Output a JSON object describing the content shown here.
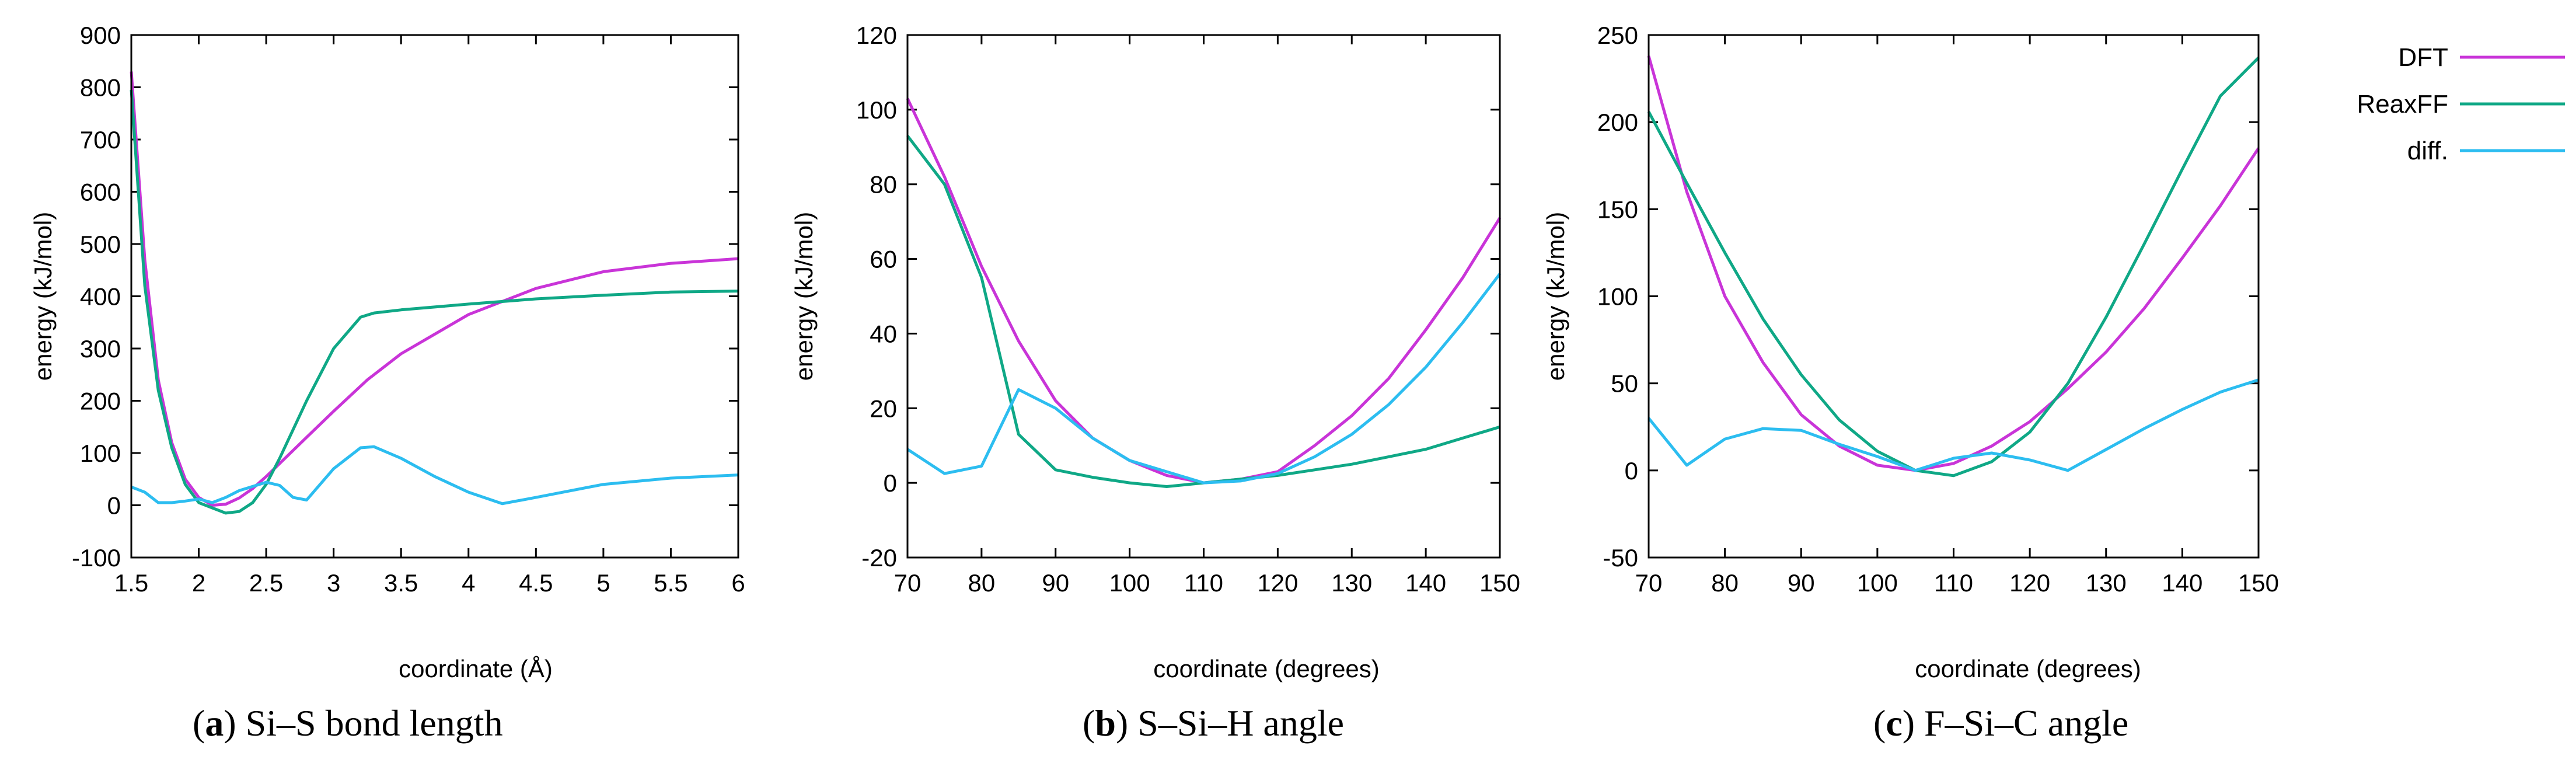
{
  "legend": [
    {
      "label": "DFT",
      "color": "#c934d8"
    },
    {
      "label": "ReaxFF",
      "color": "#0fa886"
    },
    {
      "label": "diff.",
      "color": "#2cbdf0"
    }
  ],
  "chart_data": [
    {
      "type": "line",
      "caption_prefix": "(",
      "caption_letter": "a",
      "caption_rest": ") Si–S bond length",
      "xlabel": "coordinate (Å)",
      "ylabel": "energy (kJ/mol)",
      "xlim": [
        1.5,
        6
      ],
      "ylim": [
        -100,
        900
      ],
      "xticks": [
        1.5,
        2,
        2.5,
        3,
        3.5,
        4,
        4.5,
        5,
        5.5,
        6
      ],
      "xtick_labels": [
        "1.5",
        "2",
        "2.5",
        "3",
        "3.5",
        "4",
        "4.5",
        "5",
        "5.5",
        "6"
      ],
      "yticks": [
        -100,
        0,
        100,
        200,
        300,
        400,
        500,
        600,
        700,
        800,
        900
      ],
      "ytick_labels": [
        "-100",
        "0",
        "100",
        "200",
        "300",
        "400",
        "500",
        "600",
        "700",
        "800",
        "900"
      ],
      "series": [
        {
          "name": "DFT",
          "color": "#c934d8",
          "points": [
            [
              1.5,
              830
            ],
            [
              1.6,
              470
            ],
            [
              1.7,
              240
            ],
            [
              1.8,
              120
            ],
            [
              1.9,
              50
            ],
            [
              2.0,
              15
            ],
            [
              2.1,
              0
            ],
            [
              2.2,
              2
            ],
            [
              2.3,
              14
            ],
            [
              2.4,
              32
            ],
            [
              2.5,
              55
            ],
            [
              2.6,
              80
            ],
            [
              2.8,
              130
            ],
            [
              3.0,
              180
            ],
            [
              3.25,
              240
            ],
            [
              3.5,
              290
            ],
            [
              4.0,
              365
            ],
            [
              4.5,
              415
            ],
            [
              5.0,
              447
            ],
            [
              5.5,
              463
            ],
            [
              6.0,
              472
            ]
          ]
        },
        {
          "name": "ReaxFF",
          "color": "#0fa886",
          "points": [
            [
              1.5,
              795
            ],
            [
              1.6,
              420
            ],
            [
              1.7,
              220
            ],
            [
              1.8,
              110
            ],
            [
              1.9,
              40
            ],
            [
              2.0,
              5
            ],
            [
              2.1,
              -5
            ],
            [
              2.2,
              -15
            ],
            [
              2.3,
              -12
            ],
            [
              2.4,
              5
            ],
            [
              2.5,
              40
            ],
            [
              2.6,
              90
            ],
            [
              2.8,
              200
            ],
            [
              3.0,
              300
            ],
            [
              3.2,
              360
            ],
            [
              3.3,
              368
            ],
            [
              3.5,
              374
            ],
            [
              4.0,
              385
            ],
            [
              4.5,
              395
            ],
            [
              5.0,
              402
            ],
            [
              5.5,
              408
            ],
            [
              6.0,
              410
            ]
          ]
        },
        {
          "name": "diff.",
          "color": "#2cbdf0",
          "points": [
            [
              1.5,
              35
            ],
            [
              1.6,
              25
            ],
            [
              1.7,
              5
            ],
            [
              1.8,
              5
            ],
            [
              1.9,
              8
            ],
            [
              2.0,
              12
            ],
            [
              2.1,
              5
            ],
            [
              2.2,
              15
            ],
            [
              2.3,
              28
            ],
            [
              2.4,
              36
            ],
            [
              2.5,
              44
            ],
            [
              2.6,
              38
            ],
            [
              2.7,
              15
            ],
            [
              2.8,
              10
            ],
            [
              3.0,
              70
            ],
            [
              3.2,
              110
            ],
            [
              3.3,
              112
            ],
            [
              3.5,
              90
            ],
            [
              3.75,
              55
            ],
            [
              4.0,
              25
            ],
            [
              4.25,
              3
            ],
            [
              4.5,
              15
            ],
            [
              5.0,
              40
            ],
            [
              5.5,
              52
            ],
            [
              6.0,
              58
            ]
          ]
        }
      ]
    },
    {
      "type": "line",
      "caption_prefix": "(",
      "caption_letter": "b",
      "caption_rest": ") S–Si–H angle",
      "xlabel": "coordinate (degrees)",
      "ylabel": "energy (kJ/mol)",
      "xlim": [
        70,
        150
      ],
      "ylim": [
        -20,
        120
      ],
      "xticks": [
        70,
        80,
        90,
        100,
        110,
        120,
        130,
        140,
        150
      ],
      "xtick_labels": [
        "70",
        "80",
        "90",
        "100",
        "110",
        "120",
        "130",
        "140",
        "150"
      ],
      "yticks": [
        -20,
        0,
        20,
        40,
        60,
        80,
        100,
        120
      ],
      "ytick_labels": [
        "-20",
        "0",
        "20",
        "40",
        "60",
        "80",
        "100",
        "120"
      ],
      "series": [
        {
          "name": "DFT",
          "color": "#c934d8",
          "points": [
            [
              70,
              103
            ],
            [
              75,
              82
            ],
            [
              80,
              58
            ],
            [
              85,
              38
            ],
            [
              90,
              22
            ],
            [
              95,
              12
            ],
            [
              100,
              6
            ],
            [
              105,
              2
            ],
            [
              110,
              0
            ],
            [
              115,
              1
            ],
            [
              120,
              3
            ],
            [
              125,
              10
            ],
            [
              130,
              18
            ],
            [
              135,
              28
            ],
            [
              140,
              41
            ],
            [
              145,
              55
            ],
            [
              150,
              71
            ]
          ]
        },
        {
          "name": "ReaxFF",
          "color": "#0fa886",
          "points": [
            [
              70,
              93
            ],
            [
              75,
              80
            ],
            [
              80,
              55
            ],
            [
              85,
              13
            ],
            [
              90,
              3.5
            ],
            [
              95,
              1.5
            ],
            [
              100,
              0
            ],
            [
              105,
              -1
            ],
            [
              110,
              0
            ],
            [
              115,
              1
            ],
            [
              120,
              2
            ],
            [
              125,
              3.5
            ],
            [
              130,
              5
            ],
            [
              135,
              7
            ],
            [
              140,
              9
            ],
            [
              145,
              12
            ],
            [
              150,
              15
            ]
          ]
        },
        {
          "name": "diff.",
          "color": "#2cbdf0",
          "points": [
            [
              70,
              9
            ],
            [
              75,
              2.5
            ],
            [
              80,
              4.5
            ],
            [
              85,
              25
            ],
            [
              90,
              20
            ],
            [
              95,
              12
            ],
            [
              100,
              6
            ],
            [
              105,
              3
            ],
            [
              110,
              0
            ],
            [
              115,
              0.5
            ],
            [
              120,
              2.5
            ],
            [
              125,
              7
            ],
            [
              130,
              13
            ],
            [
              135,
              21
            ],
            [
              140,
              31
            ],
            [
              145,
              43
            ],
            [
              150,
              56
            ]
          ]
        }
      ]
    },
    {
      "type": "line",
      "caption_prefix": "(",
      "caption_letter": "c",
      "caption_rest": ") F–Si–C angle",
      "xlabel": "coordinate (degrees)",
      "ylabel": "energy (kJ/mol)",
      "xlim": [
        70,
        150
      ],
      "ylim": [
        -50,
        250
      ],
      "xticks": [
        70,
        80,
        90,
        100,
        110,
        120,
        130,
        140,
        150
      ],
      "xtick_labels": [
        "70",
        "80",
        "90",
        "100",
        "110",
        "120",
        "130",
        "140",
        "150"
      ],
      "yticks": [
        -50,
        0,
        50,
        100,
        150,
        200,
        250
      ],
      "ytick_labels": [
        "-50",
        "0",
        "50",
        "100",
        "150",
        "200",
        "250"
      ],
      "series": [
        {
          "name": "DFT",
          "color": "#c934d8",
          "points": [
            [
              70,
              238
            ],
            [
              75,
              160
            ],
            [
              80,
              100
            ],
            [
              85,
              62
            ],
            [
              90,
              32
            ],
            [
              95,
              14
            ],
            [
              100,
              3
            ],
            [
              105,
              0
            ],
            [
              110,
              4
            ],
            [
              115,
              14
            ],
            [
              120,
              28
            ],
            [
              125,
              47
            ],
            [
              130,
              68
            ],
            [
              135,
              93
            ],
            [
              140,
              122
            ],
            [
              145,
              152
            ],
            [
              150,
              185
            ]
          ]
        },
        {
          "name": "ReaxFF",
          "color": "#0fa886",
          "points": [
            [
              70,
              206
            ],
            [
              75,
              165
            ],
            [
              80,
              125
            ],
            [
              85,
              87
            ],
            [
              90,
              55
            ],
            [
              95,
              29
            ],
            [
              100,
              11
            ],
            [
              105,
              0
            ],
            [
              110,
              -3
            ],
            [
              115,
              5
            ],
            [
              120,
              22
            ],
            [
              125,
              50
            ],
            [
              130,
              88
            ],
            [
              135,
              130
            ],
            [
              140,
              173
            ],
            [
              145,
              215
            ],
            [
              150,
              237
            ]
          ]
        },
        {
          "name": "diff.",
          "color": "#2cbdf0",
          "points": [
            [
              70,
              30
            ],
            [
              75,
              3
            ],
            [
              80,
              18
            ],
            [
              85,
              24
            ],
            [
              90,
              23
            ],
            [
              95,
              15
            ],
            [
              100,
              8
            ],
            [
              105,
              0
            ],
            [
              110,
              7
            ],
            [
              115,
              10
            ],
            [
              120,
              6
            ],
            [
              125,
              0
            ],
            [
              130,
              12
            ],
            [
              135,
              24
            ],
            [
              140,
              35
            ],
            [
              145,
              45
            ],
            [
              150,
              52
            ]
          ]
        }
      ]
    }
  ]
}
